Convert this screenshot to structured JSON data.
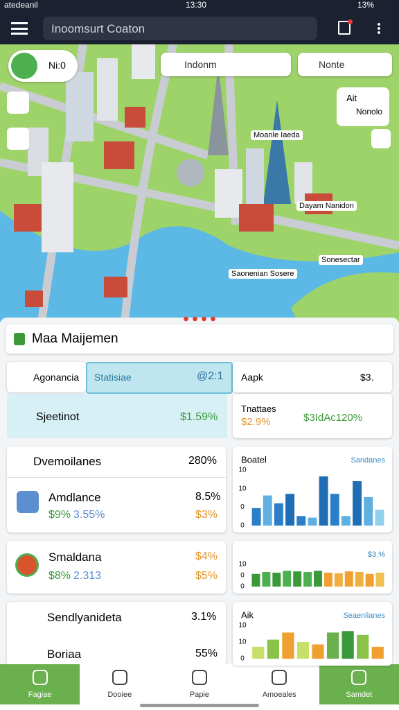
{
  "status": {
    "carrier": "atedeanil",
    "time": "13:30",
    "battery": "13%"
  },
  "header": {
    "title": "Inoomsurt Coaton"
  },
  "map": {
    "badge": "Ni:0",
    "search": "Indonm",
    "search2": "Nonte",
    "card": {
      "title": "Ait",
      "subtitle": "Nonolo"
    },
    "places": [
      "Moanle Iaeda",
      "Dayam Nanidon",
      "Sonesectar",
      "Saonenian Sosere"
    ]
  },
  "panel": {
    "title": "Maa Maijemen",
    "tabs": {
      "left": "Agonancia",
      "active": "Statisiae",
      "active_value": "@2:1",
      "right": "Aapk",
      "right_value": "$3."
    },
    "summary": {
      "label": "Sjeetinot",
      "value": "$1.59%",
      "card_title": "Tnattaes",
      "card_value": "$2.9%",
      "card_extra": "$3IdAc120%"
    },
    "items": [
      {
        "title": "Dvemoilanes",
        "value": "280%"
      },
      {
        "title": "Amdlance",
        "value": "8.5%",
        "sub1": "$9%",
        "sub2": "3.55%",
        "sub3": "$3%"
      },
      {
        "title": "Smaldana",
        "value": "$4%",
        "sub1": "$8%",
        "sub2": "2.313",
        "sub3": "$5%"
      },
      {
        "title": "Sendlyanideta",
        "value": "3.1%"
      },
      {
        "title": "Boriaa",
        "value": "55%"
      }
    ],
    "charts": [
      {
        "title": "Boatel",
        "legend": "Sandanes",
        "axis_labels": [
          "10",
          "10",
          "0",
          "0"
        ],
        "values": [
          22,
          38,
          28,
          40,
          12,
          10,
          62,
          40,
          12,
          56,
          36,
          20
        ],
        "colors": [
          "#2a7fc8",
          "#5fb0e0",
          "#2a7fc8",
          "#1f6db5",
          "#2a7fc8",
          "#5fb0e0",
          "#1f6db5",
          "#2a7fc8",
          "#5fb0e0",
          "#1f6db5",
          "#5fb0e0",
          "#8fd0ea"
        ]
      },
      {
        "title": "",
        "legend": "$3.%",
        "axis_labels": [
          "10",
          "0",
          "0"
        ],
        "values": [
          40,
          46,
          44,
          50,
          48,
          46,
          50,
          44,
          42,
          48,
          46,
          40,
          44
        ],
        "colors": [
          "#3a9a3a",
          "#4caf50",
          "#3a9a3a",
          "#4caf50",
          "#3a9a3a",
          "#4caf50",
          "#3a9a3a",
          "#f0a030",
          "#f0b040",
          "#f0a030",
          "#f0b040",
          "#f0a030",
          "#f0c050"
        ]
      },
      {
        "title": "Aik",
        "legend": "Seaenlianes",
        "axis_labels": [
          "10",
          "10",
          "0"
        ],
        "values": [
          25,
          40,
          55,
          35,
          30,
          55,
          58,
          50,
          25
        ],
        "colors": [
          "#c8e06a",
          "#8bc34a",
          "#f0a030",
          "#c8e06a",
          "#f0a030",
          "#6ab04c",
          "#3a9a3a",
          "#8bc34a",
          "#f0a030"
        ]
      }
    ]
  },
  "nav": [
    "Fagiae",
    "Dooiee",
    "Papie",
    "Amoeales",
    "Samdet"
  ]
}
